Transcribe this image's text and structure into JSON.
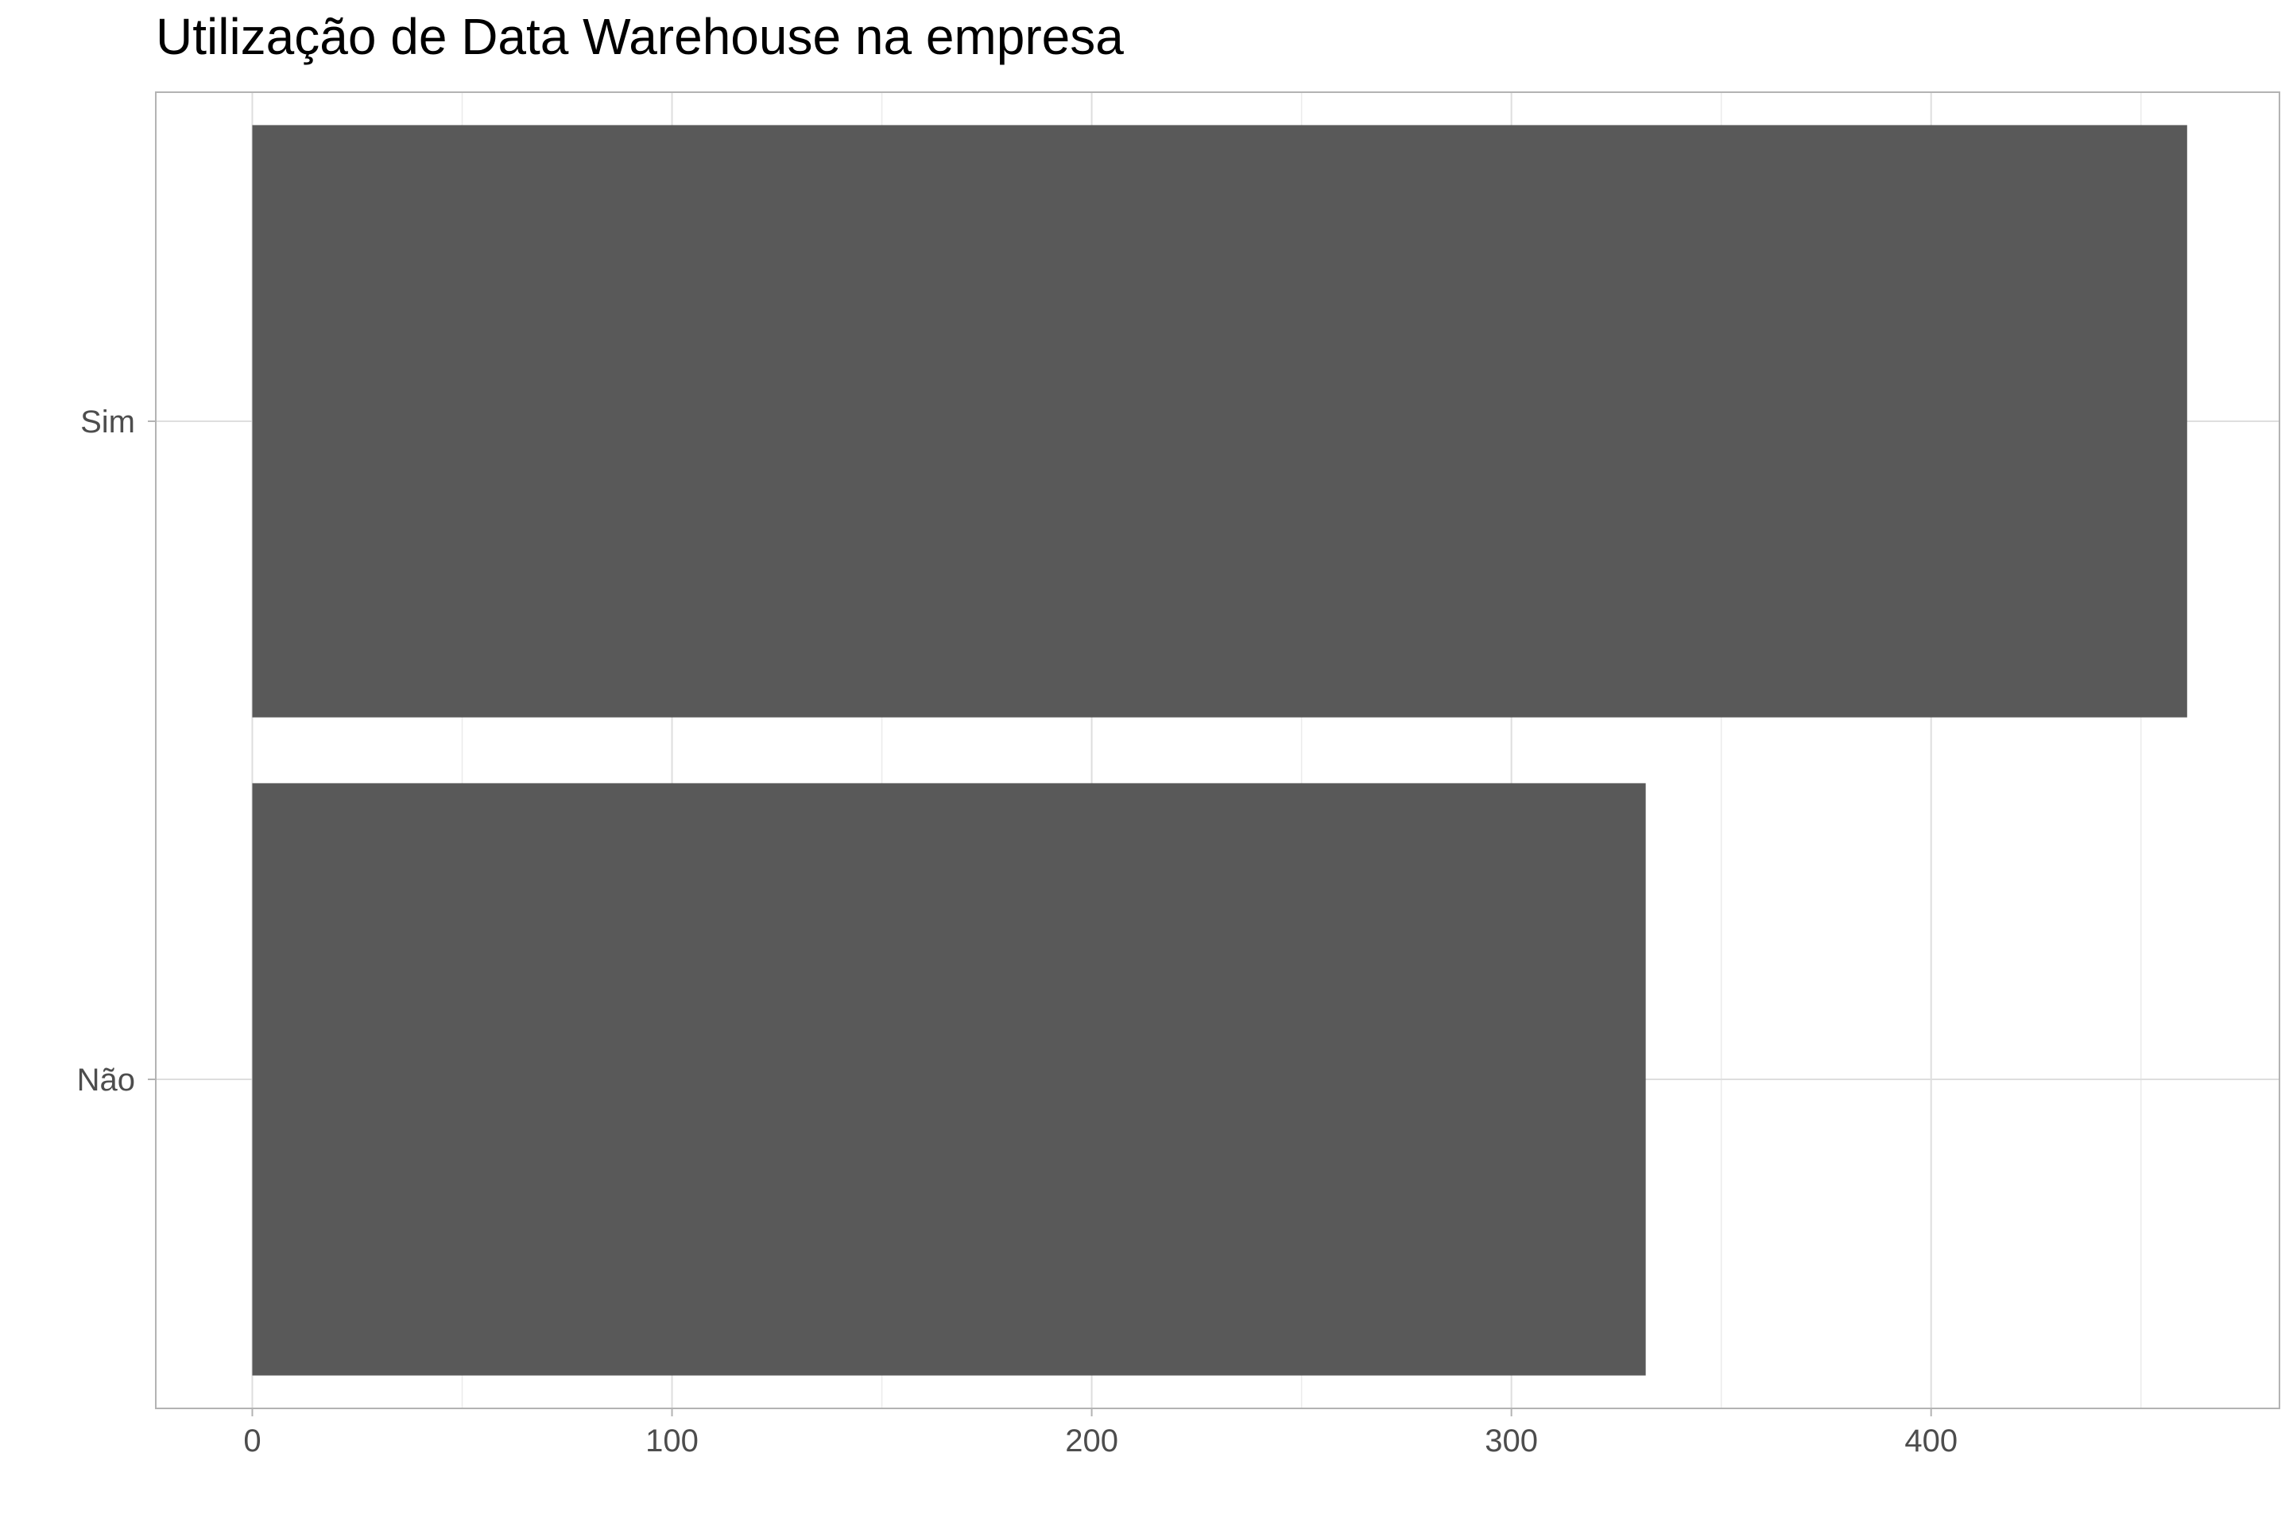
{
  "chart_data": {
    "type": "bar",
    "orientation": "horizontal",
    "title": "Utilização de Data Warehouse na empresa",
    "xlabel": "",
    "ylabel": "",
    "categories": [
      "Sim",
      "Não"
    ],
    "values": [
      461,
      332
    ],
    "xlim": [
      -23,
      483
    ],
    "x_ticks": [
      0,
      100,
      200,
      300,
      400
    ],
    "x_tick_labels": [
      "0",
      "100",
      "200",
      "300",
      "400"
    ],
    "grid": true,
    "legend": "none",
    "colors": {
      "bar": "#595959",
      "panel_border": "#b3b3b3",
      "grid_major": "#dedede",
      "grid_minor": "#ebebeb",
      "tick_mark": "#b3b3b3",
      "tick_text": "#4d4d4d",
      "title_text": "#000000"
    }
  }
}
